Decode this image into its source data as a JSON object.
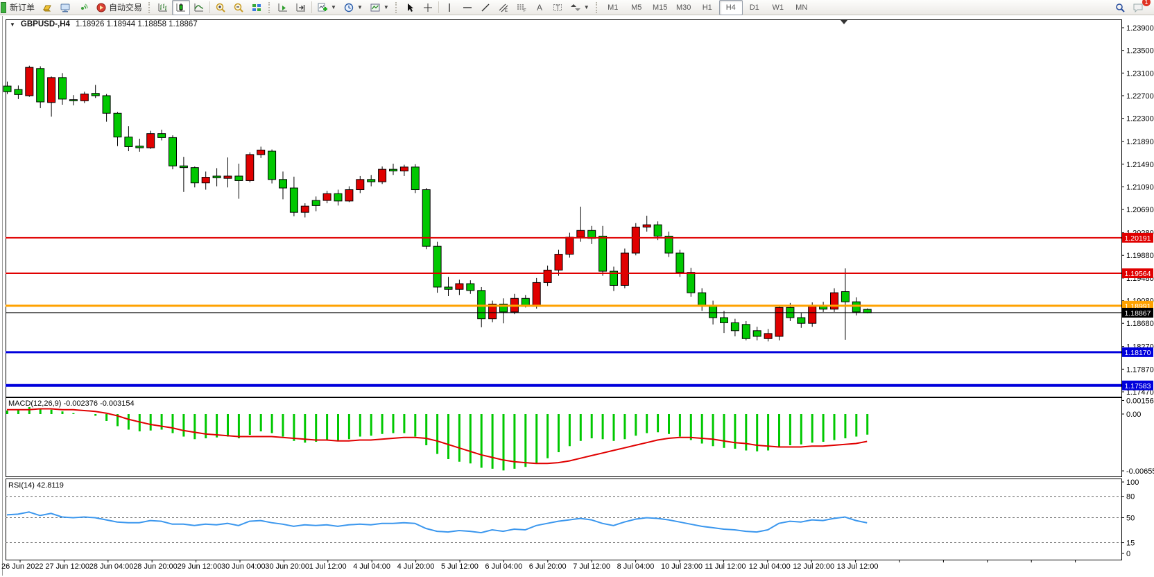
{
  "toolbar": {
    "new_order_label": "新订单",
    "auto_trading_label": "自动交易",
    "notification_badge": "1",
    "timeframes": [
      {
        "label": "M1",
        "active": false
      },
      {
        "label": "M5",
        "active": false
      },
      {
        "label": "M15",
        "active": false
      },
      {
        "label": "M30",
        "active": false
      },
      {
        "label": "H1",
        "active": false
      },
      {
        "label": "H4",
        "active": true
      },
      {
        "label": "D1",
        "active": false
      },
      {
        "label": "W1",
        "active": false
      },
      {
        "label": "MN",
        "active": false
      }
    ],
    "drawing_channel_letter": "E",
    "drawing_fibo_letter": "F",
    "drawing_text_letter": "A",
    "drawing_label_letter": "T"
  },
  "chart": {
    "symbol_title": "GBPUSD-,H4",
    "ohlc_text": "1.18926 1.18944 1.18858 1.18867"
  },
  "chart_data": {
    "type": "candlestick",
    "symbol": "GBPUSD-",
    "timeframe": "H4",
    "current_open": 1.18926,
    "current_high": 1.18944,
    "current_low": 1.18858,
    "current_close": 1.18867,
    "up_color": "#e00000",
    "down_color": "#00c800",
    "wick_color": "#000000",
    "background": "#ffffff",
    "candles": [
      [
        "d",
        1.2287,
        1.2295,
        1.2273,
        1.2277
      ],
      [
        "d",
        1.2281,
        1.2288,
        1.2264,
        1.2272
      ],
      [
        "u",
        1.227,
        1.2323,
        1.2268,
        1.232
      ],
      [
        "d",
        1.2318,
        1.2322,
        1.2248,
        1.2259
      ],
      [
        "u",
        1.2258,
        1.2304,
        1.2233,
        1.2302
      ],
      [
        "d",
        1.2302,
        1.231,
        1.2254,
        1.2264
      ],
      [
        "d",
        1.2263,
        1.2271,
        1.2253,
        1.2261
      ],
      [
        "u",
        1.2261,
        1.2277,
        1.2257,
        1.2273
      ],
      [
        "d",
        1.2274,
        1.2289,
        1.2266,
        1.227
      ],
      [
        "d",
        1.227,
        1.2273,
        1.2224,
        1.2239
      ],
      [
        "d",
        1.2239,
        1.2241,
        1.2181,
        1.2197
      ],
      [
        "d",
        1.2197,
        1.2216,
        1.2172,
        1.218
      ],
      [
        "d",
        1.2181,
        1.2194,
        1.2171,
        1.2178
      ],
      [
        "u",
        1.2178,
        1.2208,
        1.2176,
        1.2203
      ],
      [
        "d",
        1.2203,
        1.221,
        1.2191,
        1.2196
      ],
      [
        "d",
        1.2196,
        1.22,
        1.214,
        1.2146
      ],
      [
        "d",
        1.2146,
        1.2162,
        1.21,
        1.2143
      ],
      [
        "d",
        1.2143,
        1.2145,
        1.2108,
        1.2116
      ],
      [
        "u",
        1.2116,
        1.2136,
        1.2104,
        1.2126
      ],
      [
        "d",
        1.2128,
        1.2142,
        1.211,
        1.2125
      ],
      [
        "u",
        1.2124,
        1.2161,
        1.2108,
        1.2128
      ],
      [
        "d",
        1.2128,
        1.215,
        1.2088,
        1.212
      ],
      [
        "u",
        1.212,
        1.217,
        1.2117,
        1.2166
      ],
      [
        "u",
        1.2166,
        1.218,
        1.216,
        1.2174
      ],
      [
        "d",
        1.2172,
        1.2175,
        1.2115,
        1.2122
      ],
      [
        "d",
        1.2122,
        1.2136,
        1.2087,
        1.2107
      ],
      [
        "d",
        1.2107,
        1.2127,
        1.2057,
        1.2064
      ],
      [
        "u",
        1.2064,
        1.208,
        1.2055,
        1.2075
      ],
      [
        "d",
        1.2076,
        1.2092,
        1.2066,
        1.2085
      ],
      [
        "u",
        1.2085,
        1.2102,
        1.208,
        1.2097
      ],
      [
        "d",
        1.2097,
        1.2104,
        1.2076,
        1.2084
      ],
      [
        "u",
        1.2084,
        1.211,
        1.2082,
        1.2104
      ],
      [
        "u",
        1.2104,
        1.2128,
        1.2098,
        1.2122
      ],
      [
        "d",
        1.2122,
        1.213,
        1.211,
        1.2118
      ],
      [
        "u",
        1.2118,
        1.2145,
        1.2114,
        1.214
      ],
      [
        "d",
        1.214,
        1.215,
        1.213,
        1.2137
      ],
      [
        "u",
        1.2137,
        1.2148,
        1.2128,
        1.2144
      ],
      [
        "d",
        1.2144,
        1.2149,
        1.2098,
        1.2104
      ],
      [
        "d",
        1.2104,
        1.2107,
        1.1999,
        1.2004
      ],
      [
        "d",
        1.2004,
        1.2012,
        1.1922,
        1.1932
      ],
      [
        "d",
        1.1932,
        1.195,
        1.1916,
        1.1928
      ],
      [
        "u",
        1.1928,
        1.1945,
        1.1918,
        1.1938
      ],
      [
        "d",
        1.1938,
        1.1944,
        1.192,
        1.1926
      ],
      [
        "d",
        1.1926,
        1.1932,
        1.1861,
        1.1876
      ],
      [
        "u",
        1.1876,
        1.1908,
        1.187,
        1.1902
      ],
      [
        "d",
        1.1902,
        1.1912,
        1.1868,
        1.1888
      ],
      [
        "u",
        1.1888,
        1.192,
        1.1884,
        1.1912
      ],
      [
        "d",
        1.1912,
        1.1918,
        1.1896,
        1.1898
      ],
      [
        "u",
        1.1898,
        1.1948,
        1.1894,
        1.194
      ],
      [
        "u",
        1.194,
        1.197,
        1.1934,
        1.1962
      ],
      [
        "u",
        1.1962,
        1.1998,
        1.1952,
        1.199
      ],
      [
        "u",
        1.199,
        1.2028,
        1.1984,
        1.202
      ],
      [
        "u",
        1.202,
        1.2074,
        1.2012,
        1.2032
      ],
      [
        "d",
        1.2032,
        1.204,
        1.2008,
        1.2018
      ],
      [
        "d",
        1.2022,
        1.204,
        1.1952,
        1.196
      ],
      [
        "d",
        1.196,
        1.1968,
        1.1925,
        1.1935
      ],
      [
        "u",
        1.1935,
        1.2,
        1.193,
        1.1992
      ],
      [
        "u",
        1.1992,
        1.2045,
        1.1988,
        1.2038
      ],
      [
        "u",
        1.2038,
        1.2058,
        1.203,
        1.2042
      ],
      [
        "d",
        1.2042,
        1.2048,
        1.2015,
        1.2022
      ],
      [
        "d",
        1.2022,
        1.203,
        1.1985,
        1.1992
      ],
      [
        "d",
        1.1992,
        1.1998,
        1.195,
        1.1958
      ],
      [
        "d",
        1.1958,
        1.1966,
        1.1915,
        1.1922
      ],
      [
        "d",
        1.1922,
        1.193,
        1.189,
        1.19
      ],
      [
        "d",
        1.19,
        1.1908,
        1.1866,
        1.1878
      ],
      [
        "d",
        1.1878,
        1.189,
        1.1851,
        1.1869
      ],
      [
        "d",
        1.1869,
        1.1876,
        1.1845,
        1.1855
      ],
      [
        "d",
        1.1866,
        1.1872,
        1.1838,
        1.1841
      ],
      [
        "d",
        1.1855,
        1.1862,
        1.1838,
        1.1845
      ],
      [
        "u",
        1.1841,
        1.1858,
        1.1836,
        1.185
      ],
      [
        "u",
        1.1845,
        1.1898,
        1.1838,
        1.1896
      ],
      [
        "d",
        1.1896,
        1.1904,
        1.1872,
        1.1878
      ],
      [
        "d",
        1.1878,
        1.1886,
        1.186,
        1.1868
      ],
      [
        "u",
        1.1868,
        1.1905,
        1.1862,
        1.1898
      ],
      [
        "d",
        1.1898,
        1.1906,
        1.1888,
        1.1893
      ],
      [
        "u",
        1.1893,
        1.193,
        1.1888,
        1.1922
      ],
      [
        "d",
        1.1924,
        1.1965,
        1.1839,
        1.1906
      ],
      [
        "d",
        1.1906,
        1.1914,
        1.1882,
        1.1888
      ],
      [
        "d",
        1.18926,
        1.18944,
        1.18858,
        1.18867
      ]
    ],
    "hlines": [
      {
        "price": 1.20191,
        "label": "1.20191",
        "color": "#e00000",
        "width": 2
      },
      {
        "price": 1.19564,
        "label": "1.19564",
        "color": "#e00000",
        "width": 2
      },
      {
        "price": 1.18991,
        "label": "1.18991",
        "color": "#ffa200",
        "width": 3
      },
      {
        "price": 1.18867,
        "label": "1.18867",
        "color": "#000000",
        "width": 1
      },
      {
        "price": 1.1817,
        "label": "1.18170",
        "color": "#0000dc",
        "width": 3
      },
      {
        "price": 1.17583,
        "label": "1.17583",
        "color": "#0000dc",
        "width": 4
      }
    ],
    "price_axis": {
      "top_label_price": 1.239,
      "bottom_label_price": 1.1747,
      "labels": [
        "1.23900",
        "1.23500",
        "1.23100",
        "1.22700",
        "1.22300",
        "1.21890",
        "1.21490",
        "1.21090",
        "1.20690",
        "1.20280",
        "1.19880",
        "1.19480",
        "1.19080",
        "1.18680",
        "1.18270",
        "1.17870",
        "1.17470"
      ]
    },
    "time_axis": {
      "labels": [
        "26 Jun 2022",
        "27 Jun 12:00",
        "28 Jun 04:00",
        "28 Jun 20:00",
        "29 Jun 12:00",
        "30 Jun 04:00",
        "30 Jun 20:00",
        "1 Jul 12:00",
        "4 Jul 04:00",
        "4 Jul 20:00",
        "5 Jul 12:00",
        "6 Jul 04:00",
        "6 Jul 20:00",
        "7 Jul 12:00",
        "8 Jul 04:00",
        "10 Jul 23:00",
        "11 Jul 12:00",
        "12 Jul 04:00",
        "12 Jul 20:00",
        "13 Jul 12:00"
      ]
    },
    "macd": {
      "title": "MACD(12,26,9)",
      "values_text": "-0.002376 -0.003154",
      "main_value": -0.002376,
      "signal_value": -0.003154,
      "histogram_color": "#00c800",
      "signal_color": "#e00000",
      "axis_labels": [
        "0.001564",
        "0.00",
        "-0.006555"
      ],
      "axis_values": [
        0.001564,
        0,
        -0.006555
      ],
      "histogram": [
        0.0004,
        0.0005,
        0.0008,
        0.0006,
        0.0005,
        0.0003,
        0.0001,
        0.0,
        -0.0002,
        -0.0008,
        -0.0014,
        -0.0018,
        -0.002,
        -0.0019,
        -0.0018,
        -0.0022,
        -0.0026,
        -0.0029,
        -0.0028,
        -0.0027,
        -0.0026,
        -0.0028,
        -0.0024,
        -0.002,
        -0.0022,
        -0.0026,
        -0.0031,
        -0.0033,
        -0.0032,
        -0.003,
        -0.0031,
        -0.0029,
        -0.0026,
        -0.0025,
        -0.0023,
        -0.0022,
        -0.0022,
        -0.0026,
        -0.0036,
        -0.0046,
        -0.0052,
        -0.0055,
        -0.0057,
        -0.0062,
        -0.0063,
        -0.0065,
        -0.0063,
        -0.0061,
        -0.0057,
        -0.0051,
        -0.0044,
        -0.0037,
        -0.0031,
        -0.0028,
        -0.0029,
        -0.0031,
        -0.0029,
        -0.0025,
        -0.0022,
        -0.0021,
        -0.0023,
        -0.0026,
        -0.003,
        -0.0034,
        -0.0037,
        -0.0039,
        -0.004,
        -0.0042,
        -0.0043,
        -0.0042,
        -0.0038,
        -0.0036,
        -0.0035,
        -0.0033,
        -0.0032,
        -0.003,
        -0.0028,
        -0.0026,
        -0.002376
      ],
      "signal": [
        0.0005,
        0.0005,
        0.0005,
        0.0006,
        0.0006,
        0.0005,
        0.0005,
        0.0004,
        0.0003,
        0.0001,
        -0.0002,
        -0.0006,
        -0.0009,
        -0.0012,
        -0.0014,
        -0.0016,
        -0.0019,
        -0.0021,
        -0.0023,
        -0.0024,
        -0.0025,
        -0.0026,
        -0.0026,
        -0.0026,
        -0.0026,
        -0.0027,
        -0.0028,
        -0.0029,
        -0.003,
        -0.003,
        -0.0031,
        -0.0031,
        -0.003,
        -0.003,
        -0.0029,
        -0.0028,
        -0.0027,
        -0.0027,
        -0.0028,
        -0.0031,
        -0.0035,
        -0.0039,
        -0.0043,
        -0.0047,
        -0.005,
        -0.0053,
        -0.0055,
        -0.0056,
        -0.0057,
        -0.0057,
        -0.0056,
        -0.0054,
        -0.0051,
        -0.0048,
        -0.0045,
        -0.0042,
        -0.0039,
        -0.0036,
        -0.0033,
        -0.003,
        -0.0028,
        -0.0027,
        -0.0027,
        -0.0028,
        -0.0029,
        -0.0031,
        -0.0033,
        -0.0034,
        -0.0036,
        -0.0037,
        -0.0038,
        -0.0038,
        -0.0038,
        -0.0037,
        -0.0037,
        -0.0036,
        -0.0035,
        -0.0034,
        -0.003154
      ]
    },
    "rsi": {
      "title": "RSI(14)",
      "value": 42.8119,
      "label_text": "RSI(14) 42.8119",
      "line_color": "#3b97ee",
      "levels": [
        80,
        50,
        15
      ],
      "axis_labels": [
        "100",
        "80",
        "50",
        "15",
        "0"
      ],
      "axis_values": [
        100,
        80,
        50,
        15,
        0
      ],
      "series": [
        54,
        55,
        58,
        53,
        56,
        51,
        50,
        51,
        50,
        47,
        44,
        43,
        43,
        46,
        45,
        41,
        41,
        39,
        41,
        40,
        42,
        39,
        45,
        46,
        43,
        41,
        38,
        40,
        39,
        40,
        38,
        40,
        41,
        40,
        42,
        42,
        43,
        42,
        35,
        31,
        30,
        32,
        31,
        29,
        33,
        31,
        34,
        33,
        39,
        42,
        45,
        47,
        49,
        47,
        42,
        39,
        44,
        48,
        50,
        49,
        47,
        44,
        41,
        38,
        36,
        34,
        33,
        31,
        30,
        33,
        42,
        45,
        44,
        47,
        46,
        49,
        51,
        46,
        42.8
      ]
    }
  }
}
